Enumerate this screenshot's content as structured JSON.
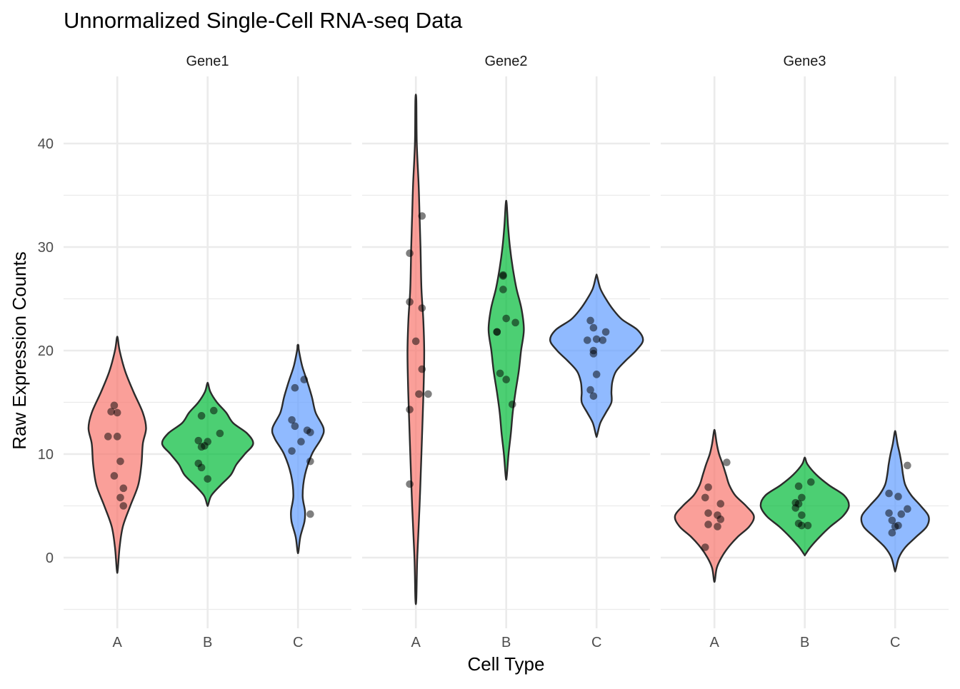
{
  "chart_data": {
    "type": "violin",
    "title": "Unnormalized Single-Cell RNA-seq Data",
    "xlabel": "Cell Type",
    "ylabel": "Raw Expression Counts",
    "ylim": [
      -5,
      45
    ],
    "y_ticks": [
      0,
      10,
      20,
      30,
      40
    ],
    "grid": true,
    "legend": "none",
    "categories": [
      "A",
      "B",
      "C"
    ],
    "category_colors": {
      "A": "#F8766D",
      "B": "#00BA38",
      "C": "#619CFF"
    },
    "facets": [
      {
        "name": "Gene1",
        "groups": [
          {
            "category": "A",
            "range": [
              -1.2,
              21.2
            ],
            "density": [
              [
                -1.2,
                0.01
              ],
              [
                1,
                0.05
              ],
              [
                3,
                0.12
              ],
              [
                5,
                0.28
              ],
              [
                7,
                0.45
              ],
              [
                9,
                0.52
              ],
              [
                11,
                0.55
              ],
              [
                12.5,
                0.62
              ],
              [
                14,
                0.55
              ],
              [
                16,
                0.35
              ],
              [
                18,
                0.17
              ],
              [
                20,
                0.05
              ],
              [
                21.2,
                0.01
              ]
            ],
            "points": [
              [
                0.15,
                14.1
              ],
              [
                0.2,
                14.7
              ],
              [
                0.25,
                14.0
              ],
              [
                0.1,
                11.7
              ],
              [
                0.25,
                11.7
              ],
              [
                0.3,
                9.3
              ],
              [
                0.2,
                7.9
              ],
              [
                0.35,
                6.7
              ],
              [
                0.3,
                5.8
              ],
              [
                0.35,
                5.0
              ]
            ]
          },
          {
            "category": "B",
            "range": [
              5.1,
              16.8
            ],
            "density": [
              [
                5.1,
                0.01
              ],
              [
                6,
                0.08
              ],
              [
                7,
                0.28
              ],
              [
                8,
                0.5
              ],
              [
                9,
                0.62
              ],
              [
                10,
                0.8
              ],
              [
                11,
                0.98
              ],
              [
                12,
                0.85
              ],
              [
                13,
                0.55
              ],
              [
                14,
                0.4
              ],
              [
                15,
                0.2
              ],
              [
                16,
                0.06
              ],
              [
                16.8,
                0.01
              ]
            ],
            "points": [
              [
                0.35,
                14.2
              ],
              [
                0.15,
                13.7
              ],
              [
                0.45,
                12.0
              ],
              [
                0.1,
                11.3
              ],
              [
                0.25,
                11.2
              ],
              [
                0.2,
                10.8
              ],
              [
                0.15,
                10.7
              ],
              [
                0.1,
                9.1
              ],
              [
                0.15,
                8.7
              ],
              [
                0.25,
                7.6
              ]
            ]
          },
          {
            "category": "C",
            "range": [
              0.6,
              20.5
            ],
            "density": [
              [
                0.6,
                0.01
              ],
              [
                2,
                0.05
              ],
              [
                3.5,
                0.14
              ],
              [
                4.5,
                0.15
              ],
              [
                6,
                0.1
              ],
              [
                8,
                0.15
              ],
              [
                10,
                0.3
              ],
              [
                11.5,
                0.5
              ],
              [
                12.5,
                0.55
              ],
              [
                14,
                0.38
              ],
              [
                15.5,
                0.3
              ],
              [
                17,
                0.2
              ],
              [
                18.5,
                0.09
              ],
              [
                20,
                0.02
              ],
              [
                20.5,
                0.01
              ]
            ],
            "points": [
              [
                0.2,
                16.4
              ],
              [
                0.35,
                17.2
              ],
              [
                0.15,
                13.3
              ],
              [
                0.2,
                12.7
              ],
              [
                0.4,
                12.3
              ],
              [
                0.45,
                12.1
              ],
              [
                0.3,
                11.2
              ],
              [
                0.15,
                10.3
              ],
              [
                0.45,
                9.3
              ],
              [
                0.45,
                4.2
              ]
            ]
          }
        ]
      },
      {
        "name": "Gene2",
        "groups": [
          {
            "category": "A",
            "range": [
              -4.0,
              44.2
            ],
            "density": [
              [
                -4,
                0.01
              ],
              [
                0,
                0.03
              ],
              [
                5,
                0.08
              ],
              [
                10,
                0.12
              ],
              [
                14,
                0.15
              ],
              [
                17,
                0.17
              ],
              [
                20,
                0.18
              ],
              [
                23,
                0.16
              ],
              [
                26,
                0.12
              ],
              [
                30,
                0.1
              ],
              [
                33,
                0.08
              ],
              [
                36,
                0.06
              ],
              [
                40,
                0.02
              ],
              [
                44.2,
                0.01
              ]
            ],
            "points": [
              [
                0.35,
                33.0
              ],
              [
                0.15,
                29.4
              ],
              [
                0.15,
                24.7
              ],
              [
                0.35,
                24.1
              ],
              [
                0.25,
                20.9
              ],
              [
                0.35,
                18.2
              ],
              [
                0.3,
                15.8
              ],
              [
                0.45,
                15.8
              ],
              [
                0.15,
                14.3
              ],
              [
                0.15,
                7.1
              ]
            ]
          },
          {
            "category": "B",
            "range": [
              7.8,
              34.2
            ],
            "density": [
              [
                7.8,
                0.01
              ],
              [
                10,
                0.05
              ],
              [
                12,
                0.1
              ],
              [
                14,
                0.14
              ],
              [
                16,
                0.2
              ],
              [
                18,
                0.27
              ],
              [
                20,
                0.32
              ],
              [
                22,
                0.38
              ],
              [
                24,
                0.33
              ],
              [
                26,
                0.22
              ],
              [
                28,
                0.14
              ],
              [
                30,
                0.08
              ],
              [
                32,
                0.04
              ],
              [
                34.2,
                0.01
              ]
            ],
            "points": [
              [
                0.2,
                27.3
              ],
              [
                0.2,
                27.2
              ],
              [
                0.2,
                25.9
              ],
              [
                0.25,
                23.1
              ],
              [
                0.4,
                22.7
              ],
              [
                0.1,
                21.8
              ],
              [
                0.1,
                21.8
              ],
              [
                0.15,
                17.8
              ],
              [
                0.25,
                17.2
              ],
              [
                0.35,
                14.8
              ]
            ]
          },
          {
            "category": "C",
            "range": [
              11.8,
              27.2
            ],
            "density": [
              [
                11.8,
                0.01
              ],
              [
                13,
                0.08
              ],
              [
                14,
                0.2
              ],
              [
                15,
                0.32
              ],
              [
                16,
                0.32
              ],
              [
                17,
                0.34
              ],
              [
                18,
                0.42
              ],
              [
                19,
                0.62
              ],
              [
                20,
                0.85
              ],
              [
                21,
                1.0
              ],
              [
                22,
                0.88
              ],
              [
                23,
                0.55
              ],
              [
                24,
                0.35
              ],
              [
                25,
                0.2
              ],
              [
                26,
                0.08
              ],
              [
                27.2,
                0.01
              ]
            ],
            "points": [
              [
                0.15,
                22.9
              ],
              [
                0.2,
                22.2
              ],
              [
                0.25,
                21.1
              ],
              [
                0.4,
                21.8
              ],
              [
                0.1,
                21.0
              ],
              [
                0.35,
                21.0
              ],
              [
                0.2,
                20.0
              ],
              [
                0.2,
                19.7
              ],
              [
                0.25,
                17.7
              ],
              [
                0.15,
                16.2
              ],
              [
                0.2,
                15.6
              ]
            ]
          }
        ]
      },
      {
        "name": "Gene3",
        "groups": [
          {
            "category": "A",
            "range": [
              -2.2,
              12.2
            ],
            "density": [
              [
                -2.2,
                0.01
              ],
              [
                -1,
                0.05
              ],
              [
                0,
                0.15
              ],
              [
                1,
                0.3
              ],
              [
                2,
                0.5
              ],
              [
                3,
                0.75
              ],
              [
                4,
                0.85
              ],
              [
                5,
                0.68
              ],
              [
                6,
                0.45
              ],
              [
                7,
                0.32
              ],
              [
                8,
                0.25
              ],
              [
                9,
                0.18
              ],
              [
                10,
                0.1
              ],
              [
                11,
                0.05
              ],
              [
                12.2,
                0.01
              ]
            ],
            "points": [
              [
                0.45,
                9.2
              ],
              [
                0.15,
                6.8
              ],
              [
                0.1,
                5.8
              ],
              [
                0.35,
                5.2
              ],
              [
                0.15,
                4.3
              ],
              [
                0.3,
                4.1
              ],
              [
                0.35,
                3.7
              ],
              [
                0.15,
                3.2
              ],
              [
                0.3,
                3.0
              ],
              [
                0.1,
                1.0
              ]
            ]
          },
          {
            "category": "B",
            "range": [
              0.3,
              9.6
            ],
            "density": [
              [
                0.3,
                0.01
              ],
              [
                1,
                0.12
              ],
              [
                2,
                0.32
              ],
              [
                3,
                0.55
              ],
              [
                4,
                0.82
              ],
              [
                5,
                0.95
              ],
              [
                6,
                0.85
              ],
              [
                7,
                0.52
              ],
              [
                8,
                0.25
              ],
              [
                9,
                0.06
              ],
              [
                9.6,
                0.01
              ]
            ],
            "points": [
              [
                0.35,
                7.3
              ],
              [
                0.15,
                6.9
              ],
              [
                0.2,
                5.8
              ],
              [
                0.1,
                5.3
              ],
              [
                0.15,
                5.2
              ],
              [
                0.1,
                4.8
              ],
              [
                0.2,
                4.1
              ],
              [
                0.15,
                3.3
              ],
              [
                0.3,
                3.1
              ],
              [
                0.2,
                3.1
              ]
            ]
          },
          {
            "category": "C",
            "range": [
              -1.2,
              12.1
            ],
            "density": [
              [
                -1.2,
                0.01
              ],
              [
                0,
                0.08
              ],
              [
                1,
                0.22
              ],
              [
                2,
                0.45
              ],
              [
                3,
                0.68
              ],
              [
                4,
                0.72
              ],
              [
                5,
                0.55
              ],
              [
                6,
                0.35
              ],
              [
                7,
                0.22
              ],
              [
                8,
                0.17
              ],
              [
                9,
                0.14
              ],
              [
                10,
                0.1
              ],
              [
                11,
                0.05
              ],
              [
                12.1,
                0.01
              ]
            ],
            "points": [
              [
                0.45,
                8.9
              ],
              [
                0.15,
                6.2
              ],
              [
                0.3,
                5.9
              ],
              [
                0.45,
                4.7
              ],
              [
                0.15,
                4.3
              ],
              [
                0.35,
                4.2
              ],
              [
                0.2,
                3.6
              ],
              [
                0.3,
                3.1
              ],
              [
                0.25,
                3.0
              ],
              [
                0.2,
                2.4
              ]
            ]
          }
        ]
      }
    ]
  }
}
